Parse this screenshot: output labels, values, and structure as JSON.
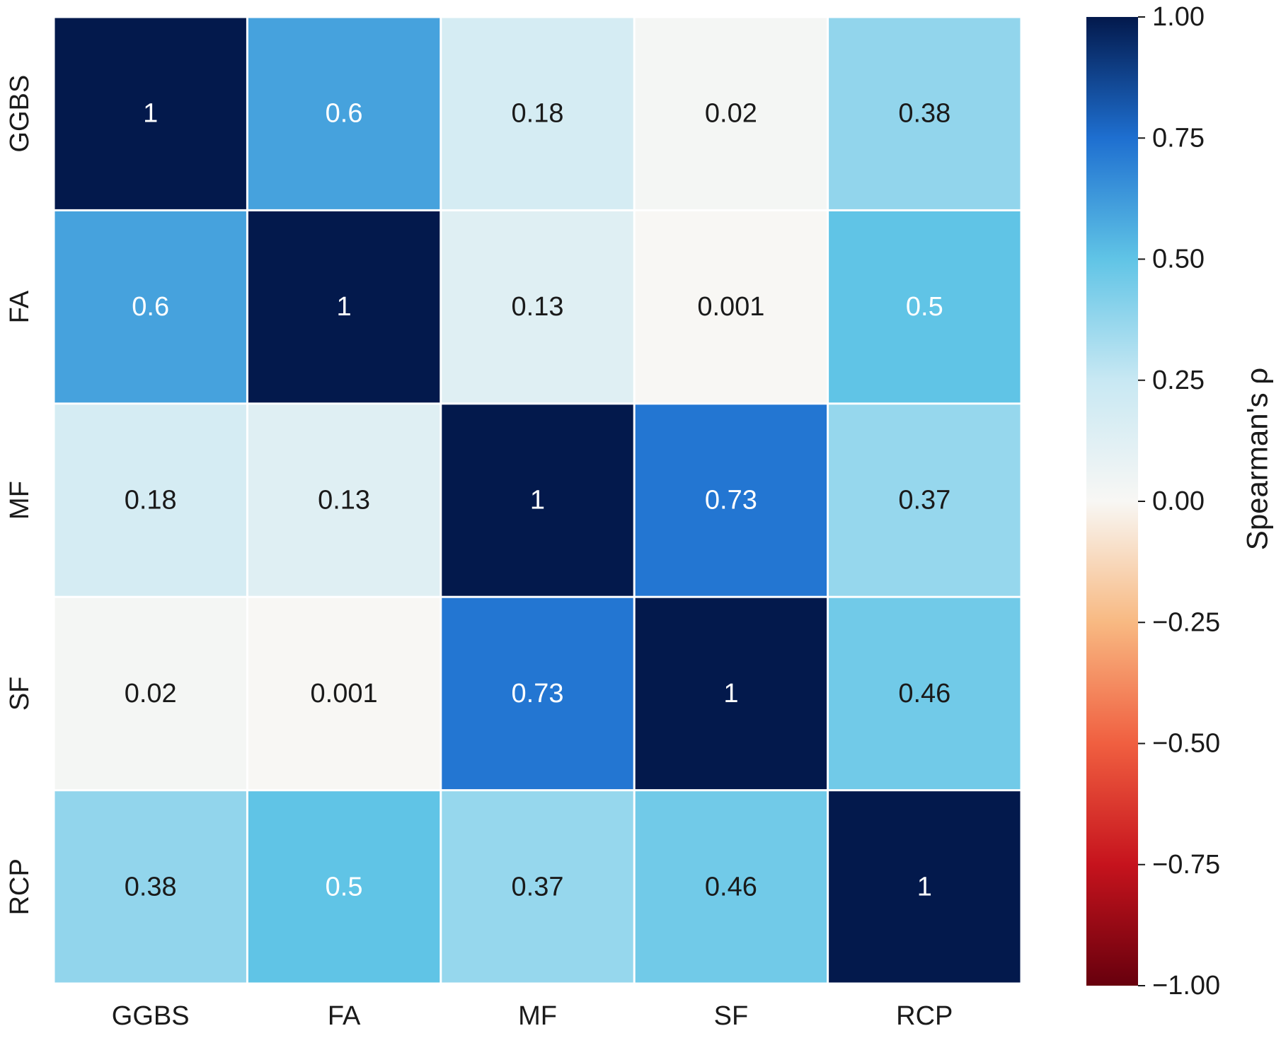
{
  "chart_data": {
    "type": "heatmap",
    "title": "",
    "xlabel": "",
    "ylabel": "",
    "categories_x": [
      "GGBS",
      "FA",
      "MF",
      "SF",
      "RCP"
    ],
    "categories_y": [
      "GGBS",
      "FA",
      "MF",
      "SF",
      "RCP"
    ],
    "values": [
      [
        1,
        0.6,
        0.18,
        0.02,
        0.38
      ],
      [
        0.6,
        1,
        0.13,
        0.001,
        0.5
      ],
      [
        0.18,
        0.13,
        1,
        0.73,
        0.37
      ],
      [
        0.02,
        0.001,
        0.73,
        1,
        0.46
      ],
      [
        0.38,
        0.5,
        0.37,
        0.46,
        1
      ]
    ],
    "value_labels": [
      [
        "1",
        "0.6",
        "0.18",
        "0.02",
        "0.38"
      ],
      [
        "0.6",
        "1",
        "0.13",
        "0.001",
        "0.5"
      ],
      [
        "0.18",
        "0.13",
        "1",
        "0.73",
        "0.37"
      ],
      [
        "0.02",
        "0.001",
        "0.73",
        "1",
        "0.46"
      ],
      [
        "0.38",
        "0.5",
        "0.37",
        "0.46",
        "1"
      ]
    ],
    "colorbar": {
      "label": "Spearman's ρ",
      "colormap": "RdBu",
      "vmin": -1,
      "vmax": 1,
      "ticks": [
        1.0,
        0.75,
        0.5,
        0.25,
        0.0,
        -0.25,
        -0.5,
        -0.75,
        -1.0
      ],
      "tick_labels": [
        "1.00",
        "0.75",
        "0.50",
        "0.25",
        "0.00",
        "−0.25",
        "−0.50",
        "−0.75",
        "−1.00"
      ]
    },
    "colors": {
      "cell_border": "#ffffff",
      "text_dark": "#1a1a1a",
      "text_light": "#ffffff"
    }
  }
}
